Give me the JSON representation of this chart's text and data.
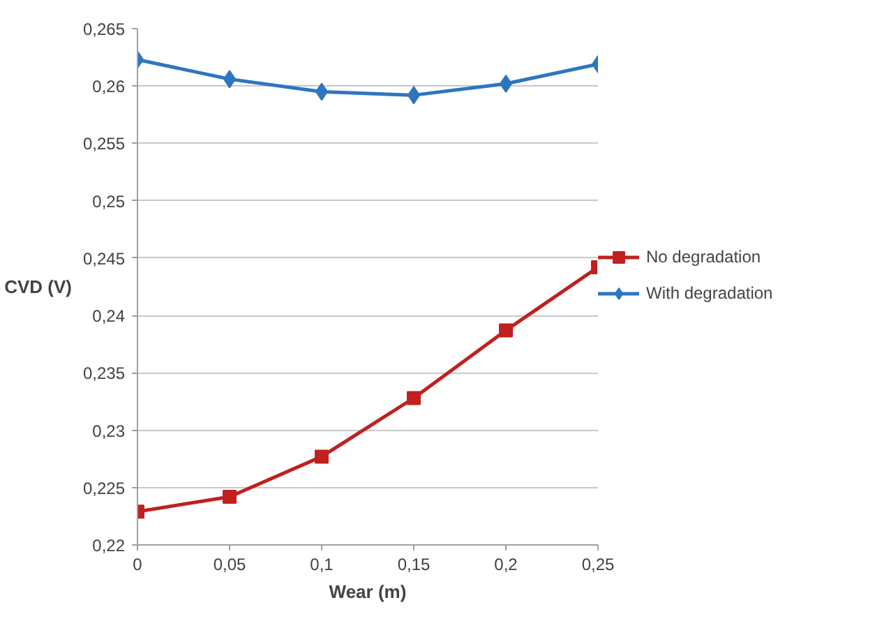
{
  "chart_data": {
    "type": "line",
    "xlabel": "Wear (m)",
    "ylabel": "CVD (V)",
    "x": [
      0,
      0.05,
      0.1,
      0.15,
      0.2,
      0.25
    ],
    "series": [
      {
        "name": "No degradation",
        "color": "#c0201e",
        "marker": "square",
        "values": [
          0.2229,
          0.2242,
          0.2277,
          0.2328,
          0.2387,
          0.2442
        ]
      },
      {
        "name": "With degradation",
        "color": "#2e75c0",
        "marker": "diamond",
        "values": [
          0.2623,
          0.2606,
          0.2595,
          0.2592,
          0.2602,
          0.2619
        ]
      }
    ],
    "xlim": [
      0,
      0.25
    ],
    "ylim": [
      0.22,
      0.265
    ],
    "xticks": [
      0,
      {
        "value": 0.05,
        "label": "0,05"
      },
      {
        "value": 0.1,
        "label": "0,1"
      },
      {
        "value": 0.15,
        "label": "0,15"
      },
      {
        "value": 0.2,
        "label": "0,2"
      },
      {
        "value": 0.25,
        "label": "0,25"
      }
    ],
    "yticks": [
      {
        "value": 0.22,
        "label": "0,22"
      },
      {
        "value": 0.225,
        "label": "0,225"
      },
      {
        "value": 0.23,
        "label": "0,23"
      },
      {
        "value": 0.235,
        "label": "0,235"
      },
      {
        "value": 0.24,
        "label": "0,24"
      },
      {
        "value": 0.245,
        "label": "0,245"
      },
      {
        "value": 0.25,
        "label": "0,25"
      },
      {
        "value": 0.255,
        "label": "0,255"
      },
      {
        "value": 0.26,
        "label": "0,26"
      },
      {
        "value": 0.265,
        "label": "0,265"
      }
    ],
    "grid": "y",
    "legend": "right",
    "line_style": "solid"
  }
}
